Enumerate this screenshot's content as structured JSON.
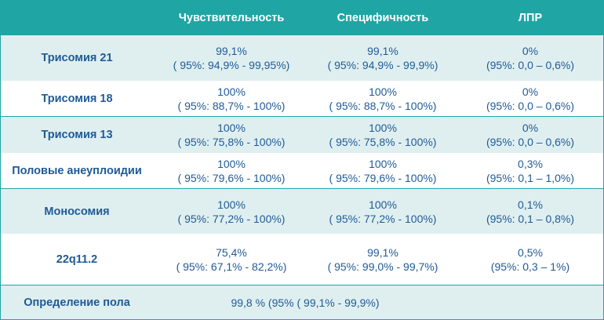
{
  "header": {
    "col0": "",
    "col1": "Чувствительность",
    "col2": "Специфичность",
    "col3": "ЛПР"
  },
  "rows": [
    {
      "label": "Трисомия 21",
      "sens": [
        "99,1%",
        "( 95%: 94,9% - 99,95%)"
      ],
      "spec": [
        "99,1%",
        "( 95%: 94,9% - 99,9%)"
      ],
      "fpr": [
        "0%",
        "(95%: 0,0 – 0,6%)"
      ]
    },
    {
      "label": "Трисомия 18",
      "sens": [
        "100%",
        "( 95%: 88,7% - 100%)"
      ],
      "spec": [
        "100%",
        "( 95%: 88,7% - 100%)"
      ],
      "fpr": [
        "0%",
        "(95%: 0,0 – 0,6%)"
      ]
    },
    {
      "label": "Трисомия 13",
      "sens": [
        "100%",
        "( 95%: 75,8% - 100%)"
      ],
      "spec": [
        "100%",
        "( 95%: 75,8% - 100%)"
      ],
      "fpr": [
        "0%",
        "(95%: 0,0 – 0,6%)"
      ]
    },
    {
      "label": "Половые анеуплоидии",
      "sens": [
        "100%",
        "( 95%: 79,6% - 100%)"
      ],
      "spec": [
        "100%",
        "( 95%: 79,6% - 100%)"
      ],
      "fpr": [
        "0,3%",
        "(95%: 0,1 – 1,0%)"
      ]
    },
    {
      "label": "Моносомия",
      "sens": [
        "100%",
        "( 95%: 77,2% - 100%)"
      ],
      "spec": [
        "100%",
        "( 95%: 77,2% - 100%)"
      ],
      "fpr": [
        "0,1%",
        "(95%: 0,1 – 0,8%)"
      ]
    },
    {
      "label": "22q11.2",
      "sens": [
        "75,4%",
        "( 95%: 67,1% - 82,2%)"
      ],
      "spec": [
        "99,1%",
        "( 95%: 99,0% - 99,7%)"
      ],
      "fpr": [
        "0,5%",
        "(95%: 0,3 – 1%)"
      ]
    }
  ],
  "footer": {
    "label": "Определение пола",
    "value": "99,8 % (95% ( 99,1% - 99,9%)"
  },
  "colors": {
    "header_bg": "#1fa6a4",
    "light_row": "#dfeff0",
    "text": "#1f5a96"
  }
}
